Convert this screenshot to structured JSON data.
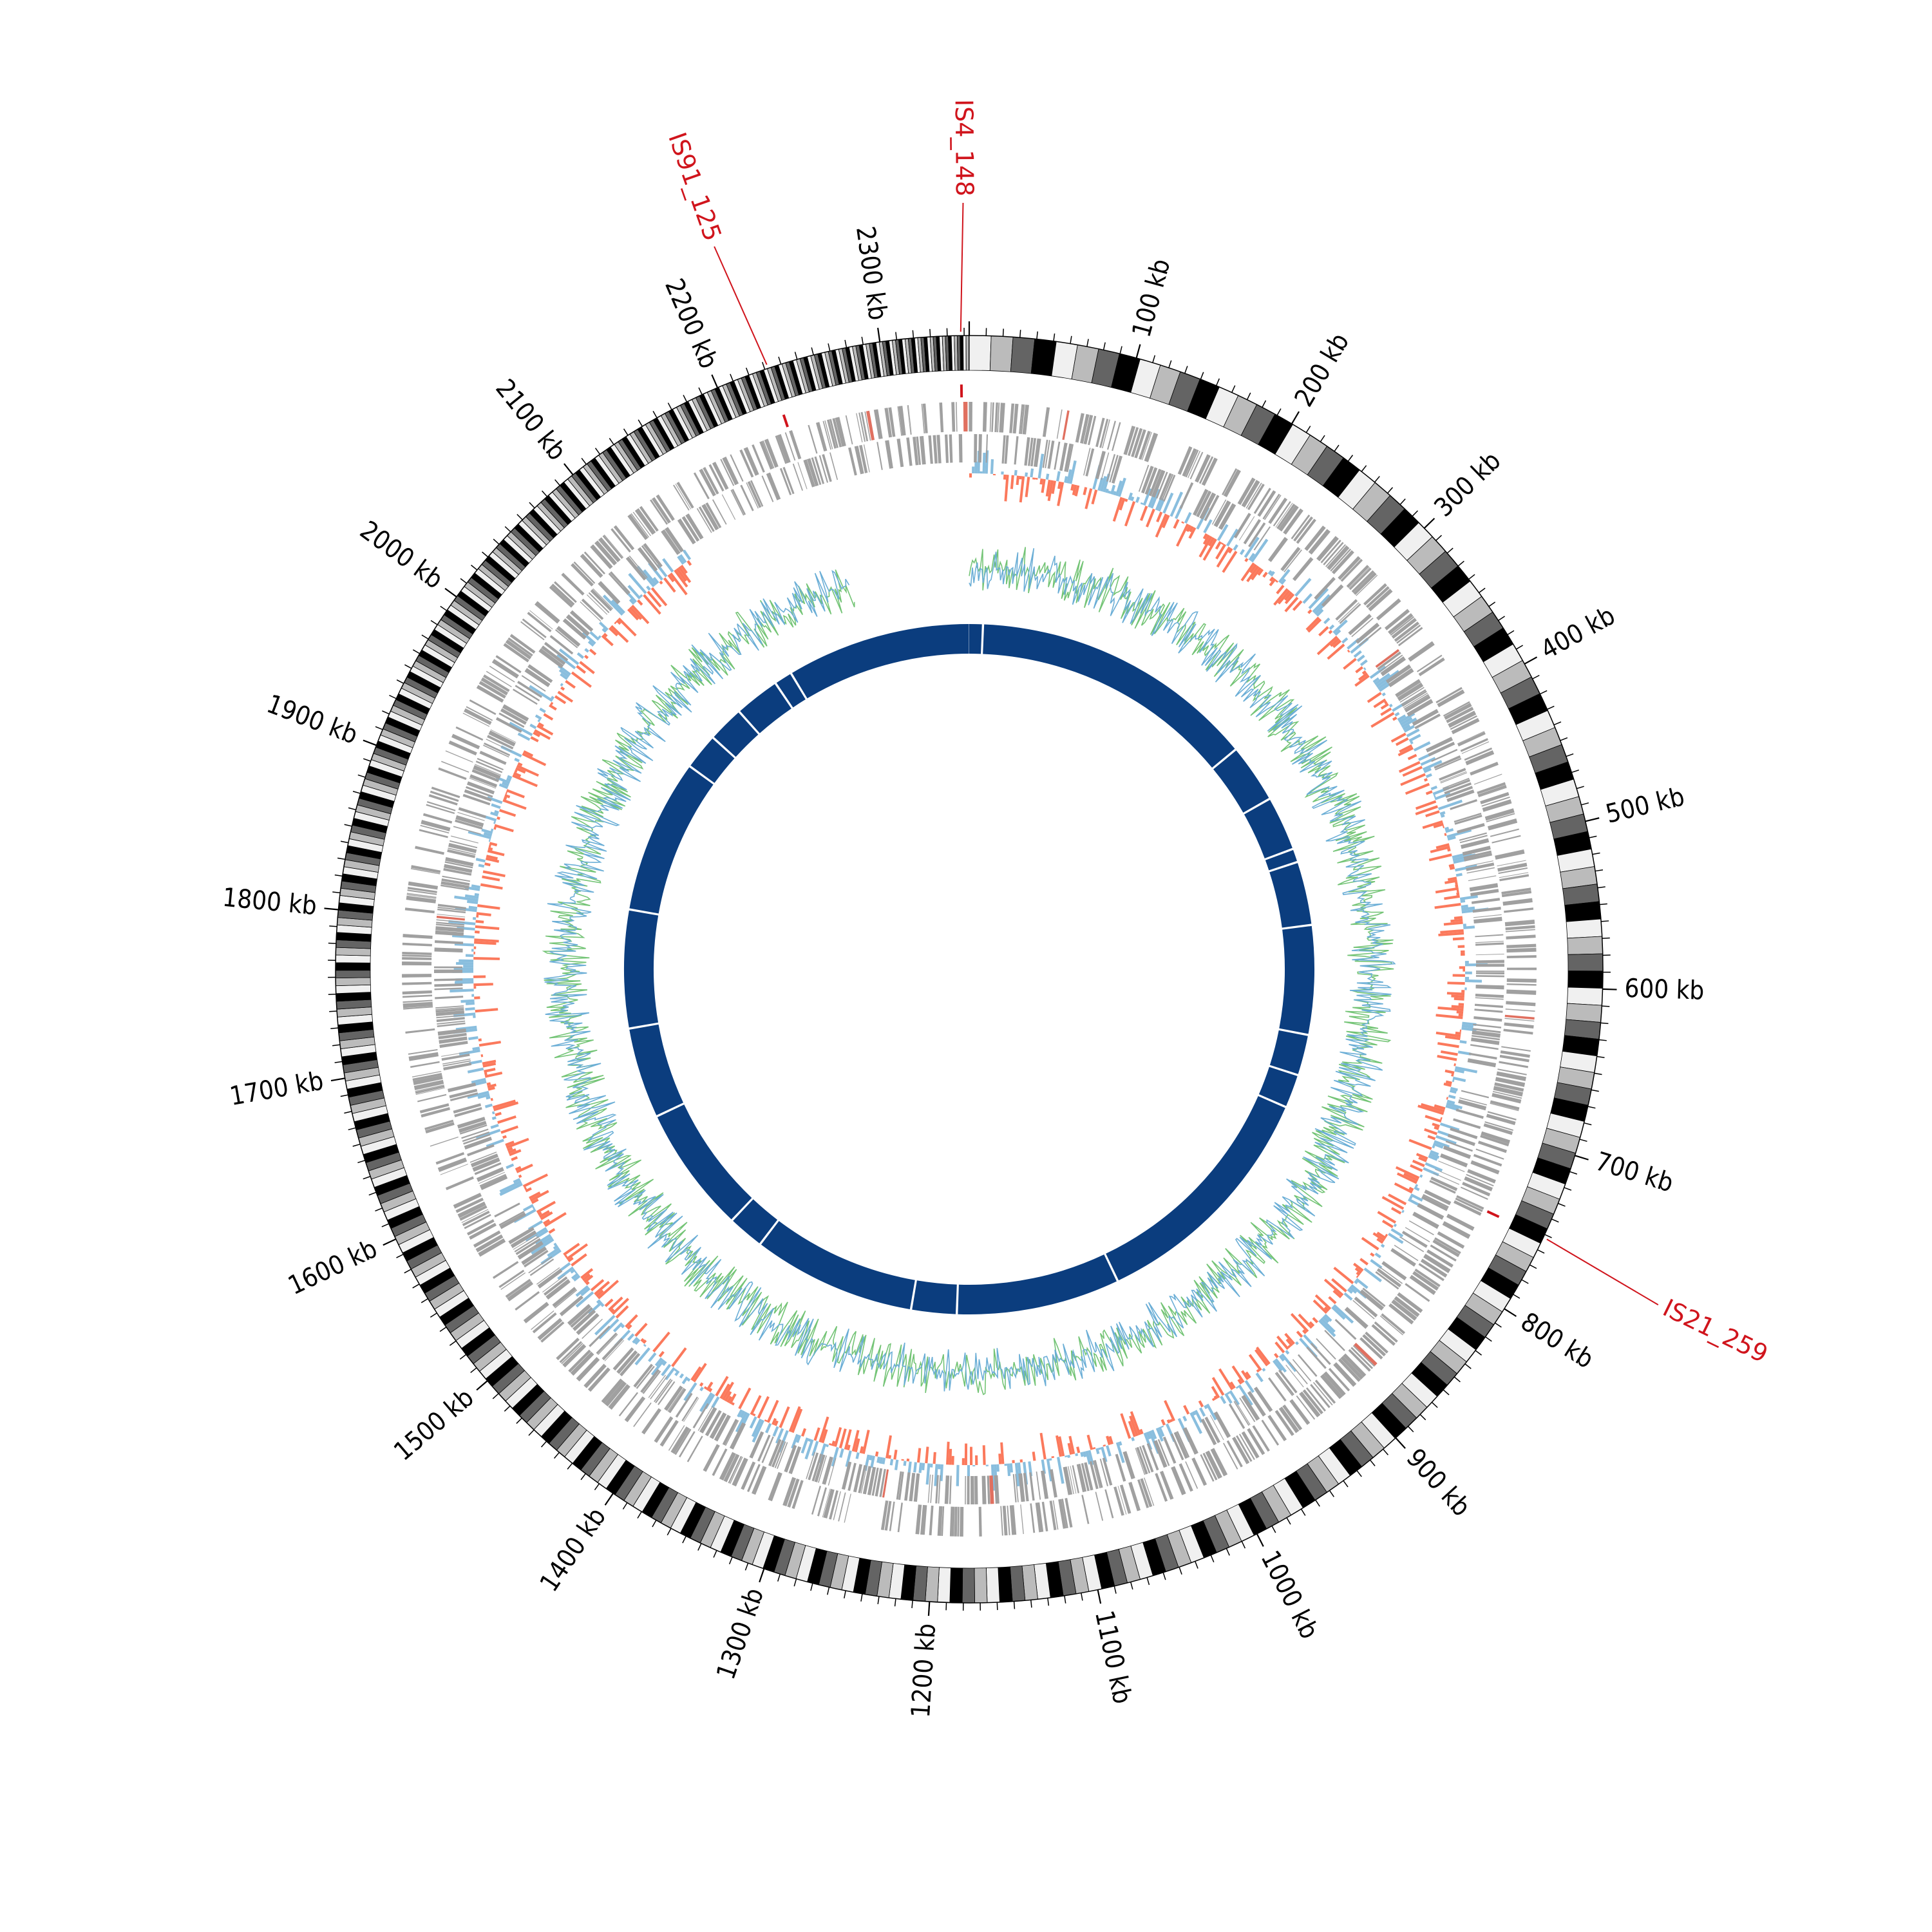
{
  "chart_data": {
    "type": "circos",
    "title": "",
    "genome_length_kb": 2353,
    "tick_unit": "kb",
    "major_tick_step_kb": 100,
    "minor_tick_step_kb": 10,
    "tick_labels": [
      "100 kb",
      "200 kb",
      "300 kb",
      "400 kb",
      "500 kb",
      "600 kb",
      "700 kb",
      "800 kb",
      "900 kb",
      "1000 kb",
      "1100 kb",
      "1200 kb",
      "1300 kb",
      "1400 kb",
      "1500 kb",
      "1600 kb",
      "1700 kb",
      "1800 kb",
      "1900 kb",
      "2000 kb",
      "2100 kb",
      "2200 kb",
      "2300 kb"
    ],
    "ideogram_band_colors": [
      "#f0f0f0",
      "#bbbbbb",
      "#646464",
      "#000000"
    ],
    "annotations": [
      {
        "label": "IS4_148",
        "position_kb": 2348
      },
      {
        "label": "IS91_125",
        "position_kb": 2232
      },
      {
        "label": "IS21_259",
        "position_kb": 752
      }
    ],
    "tracks": [
      {
        "name": "genes_forward_strand",
        "kind": "highlight",
        "color": "#a0a0a0"
      },
      {
        "name": "genes_reverse_strand",
        "kind": "highlight",
        "color": "#a0a0a0"
      },
      {
        "name": "gc_skew",
        "kind": "histogram",
        "positive_color": "#6baed6",
        "negative_color": "#fb6a4a",
        "range_kb": [
          0,
          2130
        ]
      },
      {
        "name": "gc_content",
        "kind": "line",
        "colors": [
          "#74c476",
          "#6baed6"
        ],
        "range_kb": [
          0,
          2240
        ]
      },
      {
        "name": "contigs",
        "kind": "highlight",
        "color": "#0b3d7e",
        "gap_positions_kb": [
          15,
          330,
          395,
          455,
          470,
          540,
          660,
          705,
          742,
          1010,
          1190,
          1240,
          1420,
          1460,
          1600,
          1700,
          1830,
          2000,
          2040,
          2080,
          2130,
          2150
        ]
      }
    ],
    "annotation_color": "#d0141c"
  }
}
